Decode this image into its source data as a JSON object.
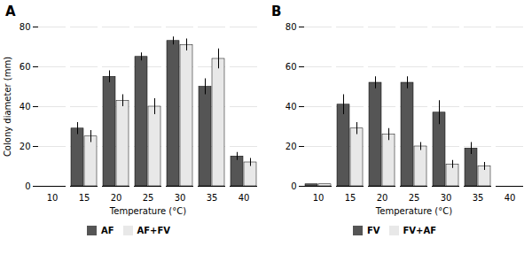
{
  "chart_data": [
    {
      "type": "bar",
      "title": "A",
      "x_label": "Temperature (°C)",
      "y_label": "Colony diameter (mm)",
      "categories": [
        "10",
        "15",
        "20",
        "25",
        "30",
        "35",
        "40"
      ],
      "series": [
        {
          "name": "AF",
          "color": "#555555",
          "values": [
            0,
            29,
            55,
            65,
            73,
            50,
            15
          ],
          "errors": [
            0,
            3,
            3,
            2,
            2,
            4,
            2
          ]
        },
        {
          "name": "AF+FV",
          "color": "#e8e8e8",
          "values": [
            0,
            25,
            43,
            40,
            71,
            64,
            12
          ],
          "errors": [
            0,
            3,
            3,
            4,
            3,
            5,
            2
          ]
        }
      ],
      "ylim": [
        0,
        80
      ],
      "yticks": [
        0,
        20,
        40,
        60,
        80
      ],
      "grid": true,
      "legend": "bottom"
    },
    {
      "type": "bar",
      "title": "B",
      "x_label": "Temperature (°C)",
      "categories": [
        "10",
        "15",
        "20",
        "25",
        "30",
        "35",
        "40"
      ],
      "series": [
        {
          "name": "FV",
          "color": "#555555",
          "values": [
            1,
            41,
            52,
            52,
            37,
            19,
            0
          ],
          "errors": [
            0,
            5,
            3,
            3,
            6,
            3,
            0
          ]
        },
        {
          "name": "FV+AF",
          "color": "#e8e8e8",
          "values": [
            1,
            29,
            26,
            20,
            11,
            10,
            0
          ],
          "errors": [
            0,
            3,
            3,
            2,
            2,
            2,
            0
          ]
        }
      ],
      "ylim": [
        0,
        80
      ],
      "yticks": [
        0,
        20,
        40,
        60,
        80
      ],
      "grid": true,
      "legend": "bottom"
    }
  ]
}
